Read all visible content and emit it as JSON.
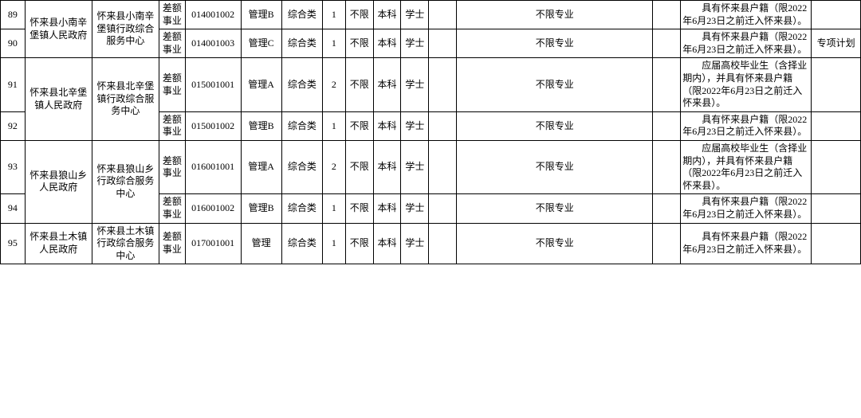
{
  "table": {
    "colors": {
      "border": "#000000",
      "bg": "#ffffff",
      "text": "#000000"
    },
    "font_size_pt": 9,
    "rows": [
      {
        "idx": "89",
        "dept": "怀来县小南辛堡镇人民政府",
        "unit": "怀来县小南辛堡镇行政综合服务中心",
        "type": "差额事业",
        "code": "014001002",
        "post": "管理B",
        "cat": "综合类",
        "num": "1",
        "limit": "不限",
        "edu": "本科",
        "deg": "学士",
        "x1": "",
        "major": "不限专业",
        "x2": "",
        "note": "具有怀来县户籍（限2022年6月23日之前迁入怀来县）。",
        "plan": ""
      },
      {
        "idx": "90",
        "type": "差额事业",
        "code": "014001003",
        "post": "管理C",
        "cat": "综合类",
        "num": "1",
        "limit": "不限",
        "edu": "本科",
        "deg": "学士",
        "x1": "",
        "major": "不限专业",
        "x2": "",
        "note": "具有怀来县户籍（限2022年6月23日之前迁入怀来县）。",
        "plan": "专项计划"
      },
      {
        "idx": "91",
        "dept": "怀来县北辛堡镇人民政府",
        "unit": "怀来县北辛堡镇行政综合服务中心",
        "type": "差额事业",
        "code": "015001001",
        "post": "管理A",
        "cat": "综合类",
        "num": "2",
        "limit": "不限",
        "edu": "本科",
        "deg": "学士",
        "x1": "",
        "major": "不限专业",
        "x2": "",
        "note": "应届高校毕业生（含择业期内），并具有怀来县户籍（限2022年6月23日之前迁入怀来县）。",
        "plan": ""
      },
      {
        "idx": "92",
        "type": "差额事业",
        "code": "015001002",
        "post": "管理B",
        "cat": "综合类",
        "num": "1",
        "limit": "不限",
        "edu": "本科",
        "deg": "学士",
        "x1": "",
        "major": "不限专业",
        "x2": "",
        "note": "具有怀来县户籍（限2022年6月23日之前迁入怀来县）。",
        "plan": ""
      },
      {
        "idx": "93",
        "dept": "怀来县狼山乡人民政府",
        "unit": "怀来县狼山乡行政综合服务中心",
        "type": "差额事业",
        "code": "016001001",
        "post": "管理A",
        "cat": "综合类",
        "num": "2",
        "limit": "不限",
        "edu": "本科",
        "deg": "学士",
        "x1": "",
        "major": "不限专业",
        "x2": "",
        "note": "应届高校毕业生（含择业期内），并具有怀来县户籍（限2022年6月23日之前迁入怀来县）。",
        "plan": ""
      },
      {
        "idx": "94",
        "type": "差额事业",
        "code": "016001002",
        "post": "管理B",
        "cat": "综合类",
        "num": "1",
        "limit": "不限",
        "edu": "本科",
        "deg": "学士",
        "x1": "",
        "major": "不限专业",
        "x2": "",
        "note": "具有怀来县户籍（限2022年6月23日之前迁入怀来县）。",
        "plan": ""
      },
      {
        "idx": "95",
        "dept": "怀来县土木镇人民政府",
        "unit": "怀来县土木镇行政综合服务中心",
        "type": "差额事业",
        "code": "017001001",
        "post": "管理",
        "cat": "综合类",
        "num": "1",
        "limit": "不限",
        "edu": "本科",
        "deg": "学士",
        "x1": "",
        "major": "不限专业",
        "x2": "",
        "note": "具有怀来县户籍（限2022年6月23日之前迁入怀来县）。",
        "plan": ""
      }
    ]
  }
}
